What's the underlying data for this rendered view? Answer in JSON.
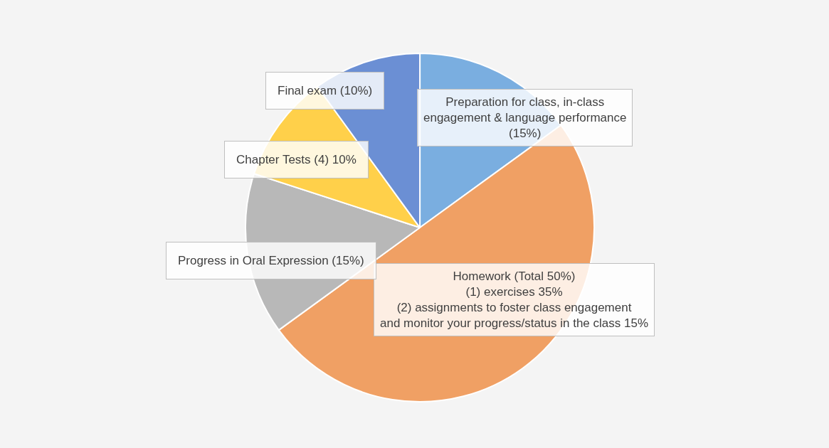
{
  "chart_data": {
    "type": "pie",
    "categories": [
      "Preparation for class, in-class\nengagement & language performance\n(15%)",
      "Homework (Total 50%)\n(1) exercises 35%\n(2) assignments to foster class engagement\nand monitor your progress/status in the class 15%",
      "Progress in Oral Expression (15%)",
      "Chapter Tests (4) 10%",
      "Final exam (10%)"
    ],
    "values": [
      15,
      50,
      15,
      10,
      10
    ],
    "colors": [
      "#7aaee0",
      "#f0a064",
      "#b8b8b8",
      "#ffd04a",
      "#6b8fd4"
    ],
    "legend": false
  }
}
